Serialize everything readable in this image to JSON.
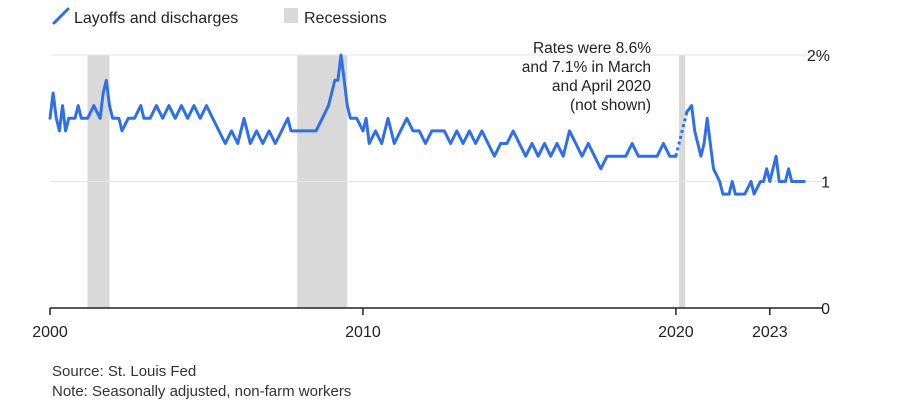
{
  "colors": {
    "series": "#2f6fe8",
    "recession": "#d9d9d9",
    "grid": "#e6e6e6",
    "axis": "#222222",
    "text": "#222222"
  },
  "footer": {
    "source": "Source: St. Louis Fed",
    "note": "Note: Seasonally adjusted, non-farm workers"
  },
  "chart_data": {
    "type": "line",
    "title": "",
    "xlabel": "",
    "ylabel": "",
    "legend": {
      "position": "top-left",
      "entries": [
        {
          "label": "Layoffs and discharges",
          "icon": "line-swatch-icon"
        },
        {
          "label": "Recessions",
          "icon": "shaded-box-icon"
        }
      ]
    },
    "xlim": [
      2000,
      2024.7
    ],
    "ylim": [
      0,
      2
    ],
    "x_ticks": [
      {
        "value": 2000,
        "label": "2000"
      },
      {
        "value": 2010,
        "label": "2010"
      },
      {
        "value": 2020,
        "label": "2020"
      },
      {
        "value": 2023,
        "label": "2023"
      }
    ],
    "y_ticks": [
      {
        "value": 2,
        "label": "2%"
      },
      {
        "value": 1,
        "label": "1"
      },
      {
        "value": 0,
        "label": "0"
      }
    ],
    "grid": true,
    "recessions": [
      {
        "start": 2001.2,
        "end": 2001.9
      },
      {
        "start": 2007.9,
        "end": 2009.5
      },
      {
        "start": 2020.1,
        "end": 2020.3
      }
    ],
    "annotation": {
      "lines": [
        "Rates were 8.6%",
        "and 7.1% in March",
        "and April 2020",
        "(not shown)"
      ]
    },
    "series": [
      {
        "name": "Layoffs and discharges",
        "segments": [
          {
            "dashed": false,
            "points": [
              [
                2000.0,
                1.5
              ],
              [
                2000.1,
                1.7
              ],
              [
                2000.2,
                1.5
              ],
              [
                2000.3,
                1.4
              ],
              [
                2000.4,
                1.6
              ],
              [
                2000.5,
                1.4
              ],
              [
                2000.6,
                1.5
              ],
              [
                2000.8,
                1.5
              ],
              [
                2000.9,
                1.6
              ],
              [
                2001.0,
                1.5
              ],
              [
                2001.2,
                1.5
              ],
              [
                2001.4,
                1.6
              ],
              [
                2001.6,
                1.5
              ],
              [
                2001.7,
                1.7
              ],
              [
                2001.8,
                1.8
              ],
              [
                2001.9,
                1.6
              ],
              [
                2002.0,
                1.5
              ],
              [
                2002.2,
                1.5
              ],
              [
                2002.3,
                1.4
              ],
              [
                2002.5,
                1.5
              ],
              [
                2002.7,
                1.5
              ],
              [
                2002.9,
                1.6
              ],
              [
                2003.0,
                1.5
              ],
              [
                2003.2,
                1.5
              ],
              [
                2003.4,
                1.6
              ],
              [
                2003.6,
                1.5
              ],
              [
                2003.8,
                1.6
              ],
              [
                2004.0,
                1.5
              ],
              [
                2004.2,
                1.6
              ],
              [
                2004.4,
                1.5
              ],
              [
                2004.6,
                1.6
              ],
              [
                2004.8,
                1.5
              ],
              [
                2005.0,
                1.6
              ],
              [
                2005.2,
                1.5
              ],
              [
                2005.4,
                1.4
              ],
              [
                2005.6,
                1.3
              ],
              [
                2005.8,
                1.4
              ],
              [
                2006.0,
                1.3
              ],
              [
                2006.2,
                1.5
              ],
              [
                2006.4,
                1.3
              ],
              [
                2006.6,
                1.4
              ],
              [
                2006.8,
                1.3
              ],
              [
                2007.0,
                1.4
              ],
              [
                2007.2,
                1.3
              ],
              [
                2007.4,
                1.4
              ],
              [
                2007.6,
                1.5
              ],
              [
                2007.7,
                1.4
              ],
              [
                2007.9,
                1.4
              ],
              [
                2008.2,
                1.4
              ],
              [
                2008.5,
                1.4
              ],
              [
                2008.7,
                1.5
              ],
              [
                2008.9,
                1.6
              ],
              [
                2009.0,
                1.7
              ],
              [
                2009.1,
                1.8
              ],
              [
                2009.2,
                1.8
              ],
              [
                2009.3,
                2.0
              ],
              [
                2009.4,
                1.8
              ],
              [
                2009.5,
                1.6
              ],
              [
                2009.6,
                1.5
              ],
              [
                2009.8,
                1.5
              ],
              [
                2010.0,
                1.4
              ],
              [
                2010.1,
                1.5
              ],
              [
                2010.2,
                1.3
              ],
              [
                2010.4,
                1.4
              ],
              [
                2010.6,
                1.3
              ],
              [
                2010.8,
                1.5
              ],
              [
                2011.0,
                1.3
              ],
              [
                2011.2,
                1.4
              ],
              [
                2011.4,
                1.5
              ],
              [
                2011.6,
                1.4
              ],
              [
                2011.8,
                1.4
              ],
              [
                2012.0,
                1.3
              ],
              [
                2012.2,
                1.4
              ],
              [
                2012.4,
                1.4
              ],
              [
                2012.6,
                1.4
              ],
              [
                2012.8,
                1.3
              ],
              [
                2013.0,
                1.4
              ],
              [
                2013.2,
                1.3
              ],
              [
                2013.4,
                1.4
              ],
              [
                2013.6,
                1.3
              ],
              [
                2013.8,
                1.4
              ],
              [
                2014.0,
                1.3
              ],
              [
                2014.2,
                1.2
              ],
              [
                2014.4,
                1.3
              ],
              [
                2014.6,
                1.3
              ],
              [
                2014.8,
                1.4
              ],
              [
                2015.0,
                1.3
              ],
              [
                2015.2,
                1.2
              ],
              [
                2015.4,
                1.3
              ],
              [
                2015.6,
                1.2
              ],
              [
                2015.8,
                1.3
              ],
              [
                2016.0,
                1.2
              ],
              [
                2016.2,
                1.3
              ],
              [
                2016.4,
                1.2
              ],
              [
                2016.6,
                1.4
              ],
              [
                2016.8,
                1.3
              ],
              [
                2017.0,
                1.2
              ],
              [
                2017.2,
                1.3
              ],
              [
                2017.4,
                1.2
              ],
              [
                2017.6,
                1.1
              ],
              [
                2017.8,
                1.2
              ],
              [
                2018.0,
                1.2
              ],
              [
                2018.2,
                1.2
              ],
              [
                2018.4,
                1.2
              ],
              [
                2018.6,
                1.3
              ],
              [
                2018.8,
                1.2
              ],
              [
                2019.0,
                1.2
              ],
              [
                2019.2,
                1.2
              ],
              [
                2019.4,
                1.2
              ],
              [
                2019.6,
                1.3
              ],
              [
                2019.8,
                1.2
              ],
              [
                2020.0,
                1.2
              ]
            ]
          },
          {
            "dashed": true,
            "points": [
              [
                2020.0,
                1.2
              ],
              [
                2020.1,
                1.3
              ],
              [
                2020.25,
                1.45
              ],
              [
                2020.35,
                1.55
              ]
            ]
          },
          {
            "dashed": false,
            "points": [
              [
                2020.35,
                1.55
              ],
              [
                2020.5,
                1.6
              ],
              [
                2020.6,
                1.4
              ],
              [
                2020.8,
                1.2
              ],
              [
                2020.9,
                1.3
              ],
              [
                2021.0,
                1.5
              ],
              [
                2021.1,
                1.3
              ],
              [
                2021.2,
                1.1
              ],
              [
                2021.4,
                1.0
              ],
              [
                2021.5,
                0.9
              ],
              [
                2021.7,
                0.9
              ],
              [
                2021.8,
                1.0
              ],
              [
                2021.9,
                0.9
              ],
              [
                2022.0,
                0.9
              ],
              [
                2022.2,
                0.9
              ],
              [
                2022.4,
                1.0
              ],
              [
                2022.5,
                0.9
              ],
              [
                2022.7,
                1.0
              ],
              [
                2022.8,
                1.0
              ],
              [
                2022.9,
                1.1
              ],
              [
                2023.0,
                1.0
              ],
              [
                2023.2,
                1.2
              ],
              [
                2023.3,
                1.0
              ],
              [
                2023.5,
                1.0
              ],
              [
                2023.6,
                1.1
              ],
              [
                2023.7,
                1.0
              ],
              [
                2023.9,
                1.0
              ],
              [
                2024.1,
                1.0
              ]
            ]
          }
        ]
      }
    ]
  }
}
